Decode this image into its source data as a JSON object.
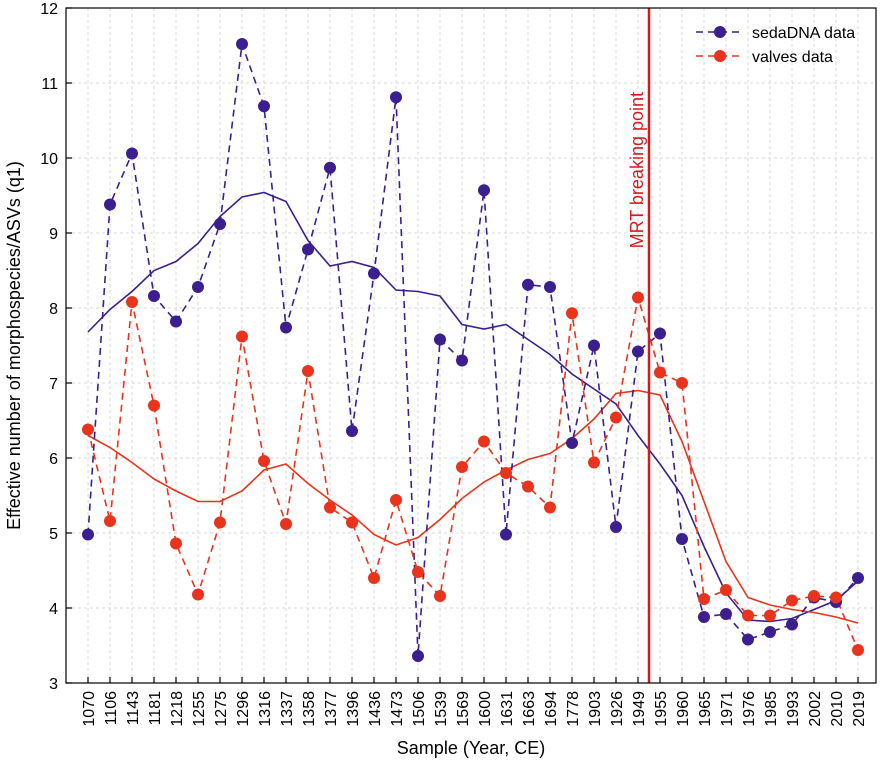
{
  "chart_data": {
    "type": "line",
    "title": "",
    "xlabel": "Sample (Year, CE)",
    "ylabel": "Effective number of morphospecies/ASVs (q1)",
    "ylim": [
      3,
      12
    ],
    "yticks": [
      3,
      4,
      5,
      6,
      7,
      8,
      9,
      10,
      11,
      12
    ],
    "grid": true,
    "legend_position": "top-right",
    "categories": [
      "1070",
      "1106",
      "1143",
      "1181",
      "1218",
      "1255",
      "1275",
      "1296",
      "1316",
      "1337",
      "1358",
      "1377",
      "1396",
      "1436",
      "1473",
      "1506",
      "1539",
      "1569",
      "1600",
      "1631",
      "1663",
      "1694",
      "1778",
      "1903",
      "1926",
      "1949",
      "1955",
      "1960",
      "1965",
      "1971",
      "1976",
      "1985",
      "1993",
      "2002",
      "2010",
      "2019"
    ],
    "highlighted_categories": [
      "1955",
      "1960",
      "1965",
      "1971",
      "1976",
      "1985",
      "1993",
      "2002",
      "2010",
      "2019"
    ],
    "series": [
      {
        "name": "sedaDNA data",
        "color": "#3b1f8f",
        "values": [
          4.98,
          9.38,
          10.06,
          8.16,
          7.82,
          8.28,
          9.12,
          11.52,
          10.69,
          7.74,
          8.78,
          9.87,
          6.36,
          8.46,
          10.81,
          3.36,
          7.58,
          7.3,
          9.57,
          4.98,
          8.31,
          8.28,
          6.2,
          7.5,
          5.08,
          7.42,
          7.66,
          4.92,
          3.88,
          3.92,
          3.58,
          3.68,
          3.78,
          4.14,
          4.08,
          4.4
        ],
        "trend": [
          7.68,
          7.98,
          8.22,
          8.5,
          8.62,
          8.86,
          9.22,
          9.48,
          9.54,
          9.42,
          8.9,
          8.56,
          8.62,
          8.54,
          8.24,
          8.22,
          8.16,
          7.78,
          7.72,
          7.78,
          7.58,
          7.38,
          7.12,
          6.92,
          6.72,
          6.3,
          5.92,
          5.5,
          4.82,
          4.2,
          3.84,
          3.82,
          3.86,
          3.98,
          4.1,
          4.36
        ]
      },
      {
        "name": "valves data",
        "color": "#e8341c",
        "values": [
          6.38,
          5.16,
          8.08,
          6.7,
          4.86,
          4.18,
          5.14,
          7.62,
          5.96,
          5.12,
          7.16,
          5.34,
          5.14,
          4.4,
          5.44,
          4.48,
          4.16,
          5.88,
          6.22,
          5.8,
          5.62,
          5.34,
          7.93,
          5.94,
          6.54,
          8.14,
          7.14,
          7.0,
          4.12,
          4.24,
          3.9,
          3.9,
          4.1,
          4.16,
          4.14,
          3.44
        ],
        "trend": [
          6.3,
          6.14,
          5.94,
          5.72,
          5.56,
          5.42,
          5.42,
          5.56,
          5.84,
          5.92,
          5.66,
          5.44,
          5.24,
          4.98,
          4.84,
          4.94,
          5.18,
          5.46,
          5.68,
          5.84,
          5.98,
          6.06,
          6.26,
          6.52,
          6.86,
          6.9,
          6.84,
          6.22,
          5.42,
          4.62,
          4.14,
          4.04,
          3.98,
          3.94,
          3.88,
          3.8
        ]
      }
    ],
    "annotations": [
      {
        "text": "MRT breaking point",
        "between": [
          "1949",
          "1955"
        ],
        "color": "#d7191c"
      }
    ]
  }
}
